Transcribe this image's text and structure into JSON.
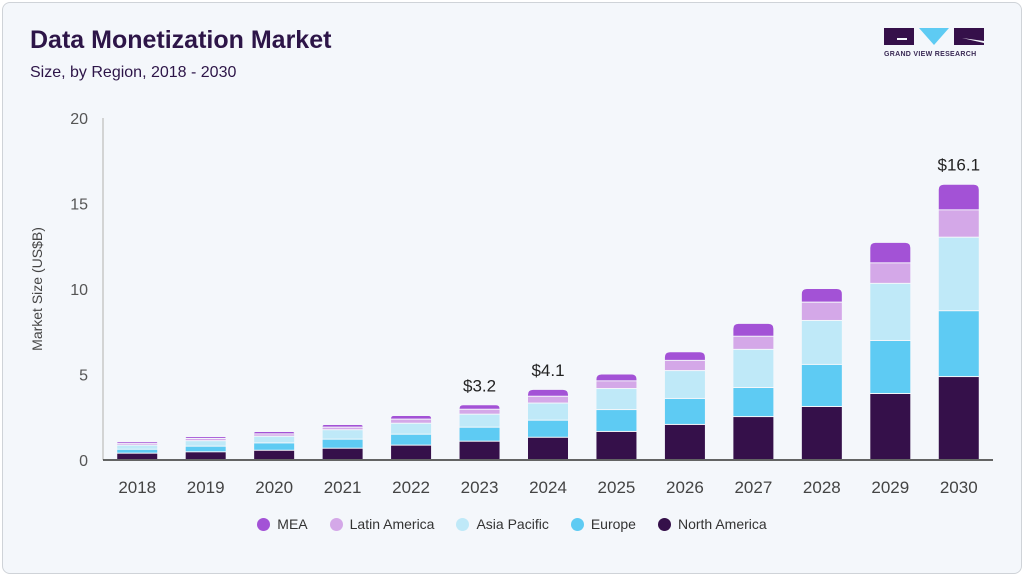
{
  "header": {
    "title": "Data Monetization Market",
    "subtitle": "Size, by Region, 2018 - 2030",
    "logo_text": "GRAND VIEW RESEARCH"
  },
  "chart_data": {
    "type": "bar",
    "stacked": true,
    "title": "Data Monetization Market",
    "subtitle": "Size, by Region, 2018 - 2030",
    "xlabel": "",
    "ylabel": "Market Size (US$B)",
    "ylim": [
      0,
      20
    ],
    "yticks": [
      "0",
      "5",
      "10",
      "15",
      "20"
    ],
    "grid": false,
    "legend_position": "bottom",
    "categories": [
      "2018",
      "2019",
      "2020",
      "2021",
      "2022",
      "2023",
      "2024",
      "2025",
      "2026",
      "2027",
      "2028",
      "2029",
      "2030"
    ],
    "series": [
      {
        "name": "North America",
        "color": "#35104a",
        "values": [
          0.37,
          0.45,
          0.54,
          0.66,
          0.84,
          1.07,
          1.3,
          1.64,
          2.05,
          2.51,
          3.1,
          3.86,
          4.85
        ]
      },
      {
        "name": "Europe",
        "color": "#5ecbf3",
        "values": [
          0.23,
          0.33,
          0.43,
          0.53,
          0.64,
          0.82,
          1.0,
          1.28,
          1.52,
          1.7,
          2.46,
          3.1,
          3.85
        ]
      },
      {
        "name": "Asia Pacific",
        "color": "#bfe9f8",
        "values": [
          0.24,
          0.32,
          0.39,
          0.55,
          0.64,
          0.76,
          1.0,
          1.23,
          1.63,
          2.23,
          2.57,
          3.34,
          4.3
        ]
      },
      {
        "name": "Latin America",
        "color": "#d4a8e8",
        "values": [
          0.11,
          0.13,
          0.14,
          0.15,
          0.24,
          0.29,
          0.4,
          0.45,
          0.6,
          0.77,
          1.07,
          1.2,
          1.6
        ]
      },
      {
        "name": "MEA",
        "color": "#a352d6",
        "values": [
          0.1,
          0.11,
          0.14,
          0.16,
          0.21,
          0.26,
          0.4,
          0.4,
          0.5,
          0.75,
          0.8,
          1.2,
          1.5
        ]
      }
    ],
    "annotations": [
      {
        "category": "2023",
        "label": "$3.2"
      },
      {
        "category": "2024",
        "label": "$4.1"
      },
      {
        "category": "2030",
        "label": "$16.1"
      }
    ],
    "legend_order": [
      "MEA",
      "Latin America",
      "Asia Pacific",
      "Europe",
      "North America"
    ]
  }
}
